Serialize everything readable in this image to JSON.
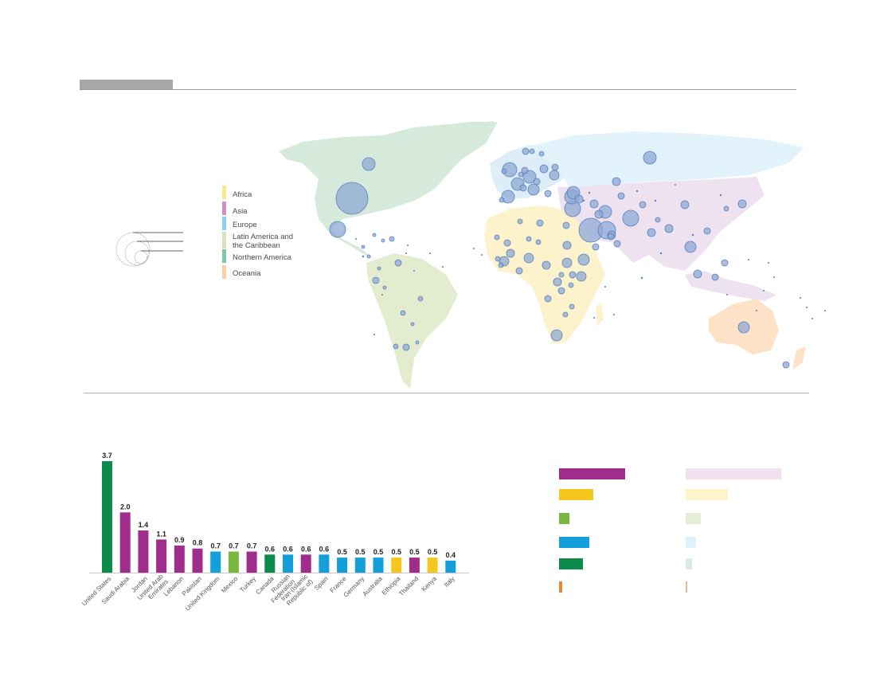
{
  "colors": {
    "africa": "#f4c71e",
    "asia": "#a02c8b",
    "europe": "#13a0da",
    "latin_america": "#79b83f",
    "northern_america": "#0c8b4a",
    "oceania": "#f0862a"
  },
  "map_legend": [
    {
      "label": "Africa",
      "color": "#f7e98c"
    },
    {
      "label": "Asia",
      "color": "#d58ec8"
    },
    {
      "label": "Europe",
      "color": "#8ed3ef"
    },
    {
      "label": "Latin America and",
      "label2": "the Caribbean",
      "color": "#d7e6b6"
    },
    {
      "label": "Northern America",
      "color": "#7ec9a3"
    },
    {
      "label": "Oceania",
      "color": "#fbd2a8"
    }
  ],
  "chart_data": [
    {
      "type": "bar",
      "categories": [
        "United States",
        "Saudi Arabia",
        "Jordan",
        "United Arab Emirates",
        "Lebanon",
        "Pakistan",
        "United Kingdom",
        "Mexico",
        "Turkey",
        "Canada",
        "Russian Federation",
        "Iran (Islamic Republic of)",
        "Spain",
        "France",
        "Germany",
        "Australia",
        "Ethiopia",
        "Thailand",
        "Kenya",
        "Italy"
      ],
      "category_lines": [
        [
          "United States"
        ],
        [
          "Saudi Arabia"
        ],
        [
          "Jordan"
        ],
        [
          "United Arab",
          "Emirates"
        ],
        [
          "Lebanon"
        ],
        [
          "Pakistan"
        ],
        [
          "United Kingdom"
        ],
        [
          "Mexico"
        ],
        [
          "Turkey"
        ],
        [
          "Canada"
        ],
        [
          "Russian",
          "Federation"
        ],
        [
          "Iran (Islamic",
          "Republic of)"
        ],
        [
          "Spain"
        ],
        [
          "France"
        ],
        [
          "Germany"
        ],
        [
          "Australia"
        ],
        [
          "Ethiopia"
        ],
        [
          "Thailand"
        ],
        [
          "Kenya"
        ],
        [
          "Italy"
        ]
      ],
      "values": [
        3.7,
        2.0,
        1.4,
        1.1,
        0.9,
        0.8,
        0.7,
        0.7,
        0.7,
        0.6,
        0.6,
        0.6,
        0.6,
        0.5,
        0.5,
        0.5,
        0.5,
        0.5,
        0.5,
        0.4
      ],
      "value_labels": [
        "3.7",
        "2.0",
        "1.4",
        "1.1",
        "0.9",
        "0.8",
        "0.7",
        "0.7",
        "0.7",
        "0.6",
        "0.6",
        "0.6",
        "0.6",
        "0.5",
        "0.5",
        "0.5",
        "0.5",
        "0.5",
        "0.5",
        "0.4"
      ],
      "regions": [
        "northern_america",
        "asia",
        "asia",
        "asia",
        "asia",
        "asia",
        "europe",
        "latin_america",
        "asia",
        "northern_america",
        "europe",
        "asia",
        "europe",
        "europe",
        "europe",
        "europe",
        "africa",
        "asia",
        "africa",
        "europe"
      ],
      "ylim": [
        0,
        3.7
      ]
    },
    {
      "type": "bar",
      "orientation": "horizontal",
      "categories": [
        "Asia",
        "Africa",
        "Latin America and the Caribbean",
        "Europe",
        "Northern America",
        "Oceania"
      ],
      "series": [
        {
          "values": [
            83,
            43,
            13,
            38,
            30,
            4
          ],
          "colors": [
            "#a02c8b",
            "#f4c71e",
            "#79b83f",
            "#13a0da",
            "#0c8b4a",
            "#f0862a"
          ]
        },
        {
          "values": [
            120,
            53,
            19,
            13,
            8,
            2
          ],
          "colors": [
            "#f1e1ee",
            "#fdf4c9",
            "#e6edd5",
            "#dff1fb",
            "#d9ece2",
            "#f3b88a"
          ]
        }
      ]
    }
  ]
}
